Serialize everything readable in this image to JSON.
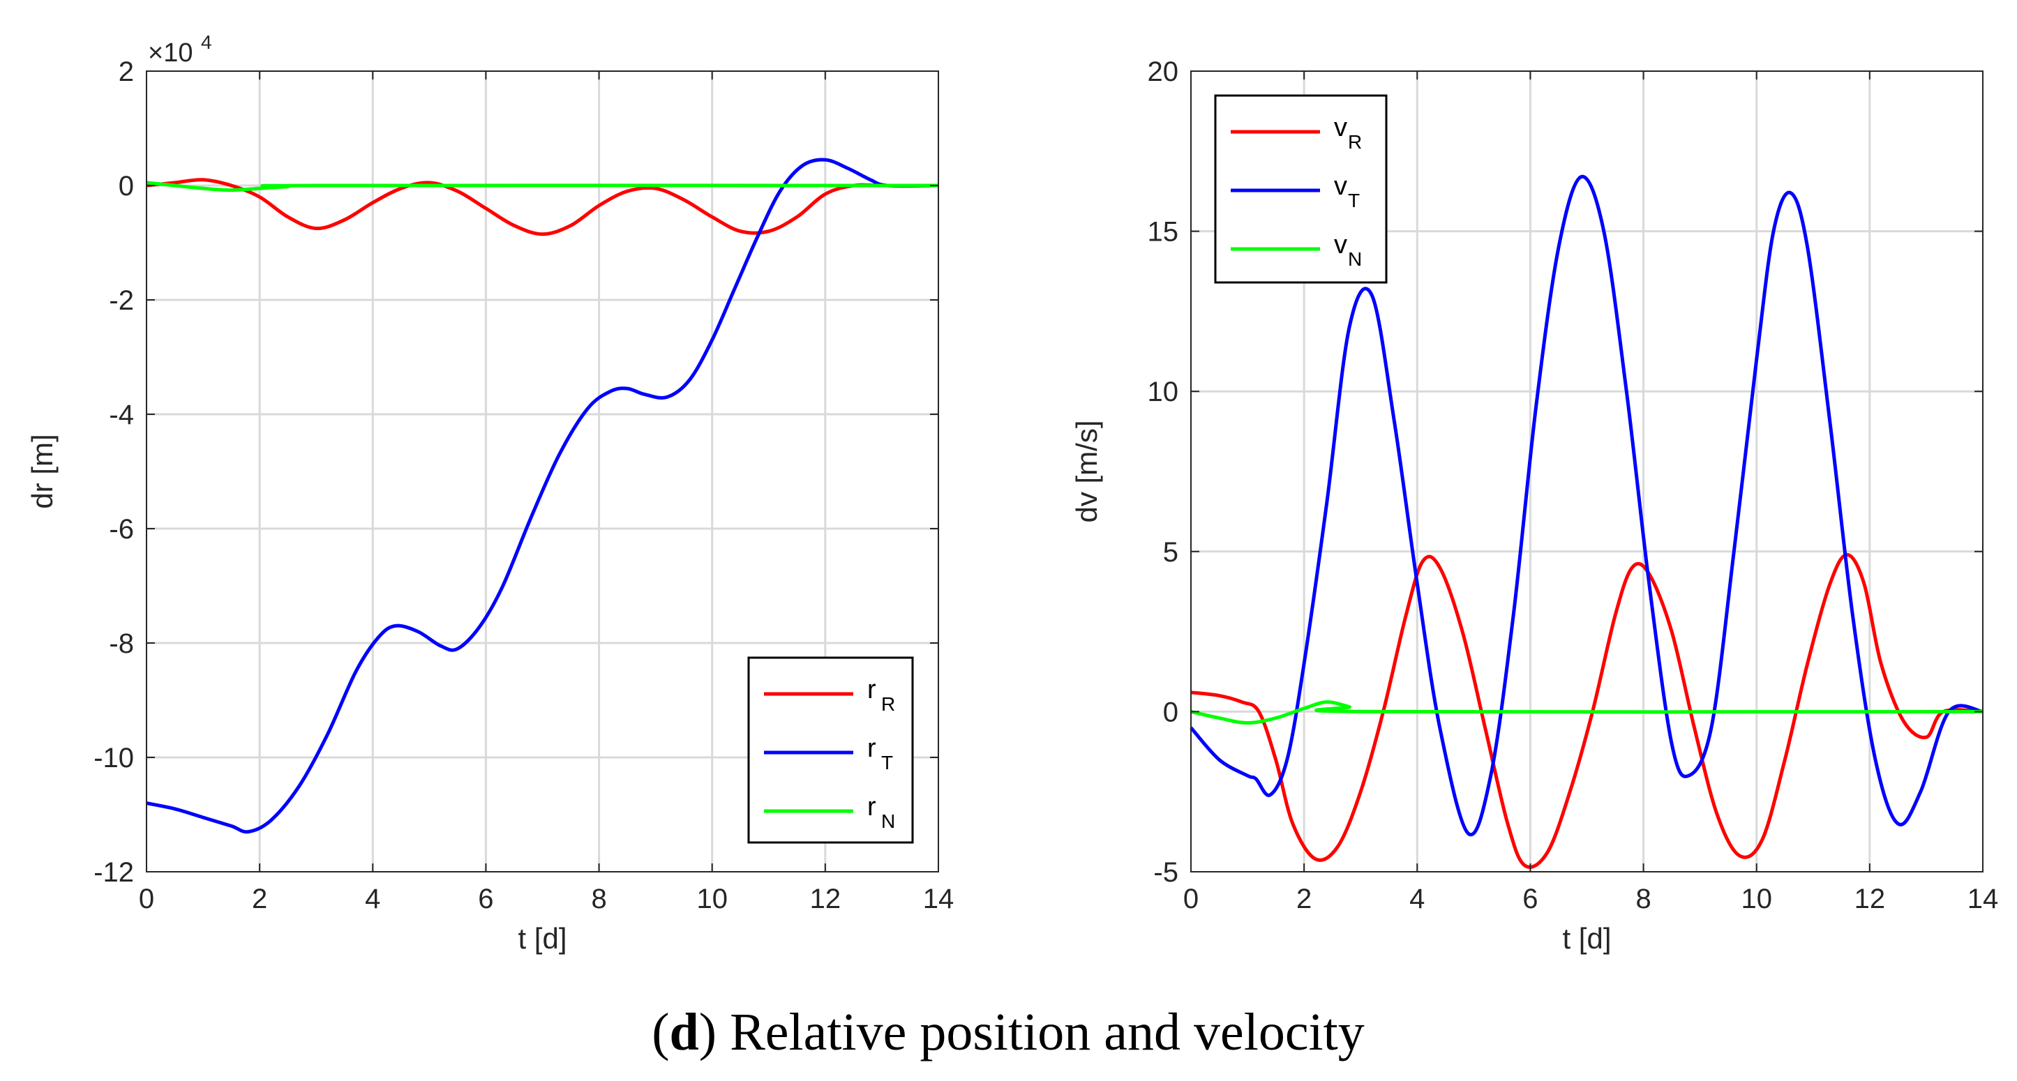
{
  "caption": {
    "open": "(",
    "bold": "d",
    "rest": ") Relative position and velocity"
  },
  "colors": {
    "red": "#ff0000",
    "blue": "#0000ff",
    "green": "#00ff00",
    "grid": "#d9d9d9",
    "axis": "#262626"
  },
  "chart_data": [
    {
      "type": "line",
      "id": "left",
      "xlabel": "t [d]",
      "ylabel": "dr [m]",
      "exponent_base": "×10",
      "exponent_power": "4",
      "xlim": [
        0,
        14
      ],
      "ylim": [
        -12,
        2
      ],
      "xticks": [
        0,
        2,
        4,
        6,
        8,
        10,
        12,
        14
      ],
      "yticks": [
        -12,
        -10,
        -8,
        -6,
        -4,
        -2,
        0,
        2
      ],
      "legend_position": "bottom-right",
      "series": [
        {
          "name": "r",
          "sub": "R",
          "color": "#ff0000",
          "x": [
            0,
            0.5,
            1,
            1.5,
            2,
            2.5,
            3,
            3.5,
            4,
            4.5,
            5,
            5.5,
            6,
            6.5,
            7,
            7.5,
            8,
            8.5,
            9,
            9.5,
            10,
            10.5,
            11,
            11.5,
            12,
            12.5,
            13,
            14
          ],
          "y": [
            0,
            0.05,
            0.1,
            0,
            -0.2,
            -0.55,
            -0.75,
            -0.6,
            -0.3,
            -0.05,
            0.05,
            -0.1,
            -0.4,
            -0.7,
            -0.85,
            -0.7,
            -0.35,
            -0.1,
            -0.05,
            -0.25,
            -0.55,
            -0.8,
            -0.8,
            -0.55,
            -0.15,
            0,
            0,
            0
          ]
        },
        {
          "name": "r",
          "sub": "T",
          "color": "#0000ff",
          "x": [
            0,
            0.5,
            1,
            1.5,
            1.8,
            2.2,
            2.7,
            3.2,
            3.7,
            4.1,
            4.4,
            4.8,
            5.2,
            5.5,
            5.9,
            6.3,
            6.8,
            7.3,
            7.8,
            8.2,
            8.5,
            8.8,
            9.2,
            9.6,
            10,
            10.4,
            10.8,
            11.2,
            11.6,
            12,
            12.4,
            12.8,
            13.1,
            14
          ],
          "y": [
            -10.8,
            -10.9,
            -11.05,
            -11.2,
            -11.3,
            -11.1,
            -10.5,
            -9.6,
            -8.5,
            -7.9,
            -7.7,
            -7.8,
            -8.05,
            -8.1,
            -7.7,
            -7.0,
            -5.8,
            -4.7,
            -3.9,
            -3.6,
            -3.55,
            -3.65,
            -3.7,
            -3.4,
            -2.7,
            -1.8,
            -0.9,
            -0.1,
            0.35,
            0.45,
            0.3,
            0.1,
            0,
            0
          ]
        },
        {
          "name": "r",
          "sub": "N",
          "color": "#00ff00",
          "x": [
            0,
            0.5,
            1,
            1.5,
            2,
            2.5,
            3,
            14
          ],
          "y": [
            0.05,
            0,
            -0.05,
            -0.08,
            -0.05,
            -0.02,
            0,
            0
          ]
        }
      ]
    },
    {
      "type": "line",
      "id": "right",
      "xlabel": "t [d]",
      "ylabel": "dv [m/s]",
      "xlim": [
        0,
        14
      ],
      "ylim": [
        -5,
        20
      ],
      "xticks": [
        0,
        2,
        4,
        6,
        8,
        10,
        12,
        14
      ],
      "yticks": [
        -5,
        0,
        5,
        10,
        15,
        20
      ],
      "legend_position": "top-left",
      "series": [
        {
          "name": "v",
          "sub": "R",
          "color": "#ff0000",
          "x": [
            0,
            0.5,
            0.9,
            1.2,
            1.5,
            1.8,
            2.2,
            2.6,
            3.0,
            3.4,
            3.8,
            4.1,
            4.4,
            4.8,
            5.2,
            5.6,
            5.9,
            6.3,
            6.7,
            7.1,
            7.5,
            7.8,
            8.1,
            8.5,
            8.9,
            9.3,
            9.7,
            10.1,
            10.5,
            10.9,
            11.3,
            11.6,
            11.9,
            12.2,
            12.6,
            13.0,
            13.3,
            14
          ],
          "y": [
            0.6,
            0.5,
            0.3,
            0,
            -1.5,
            -3.5,
            -4.6,
            -4.2,
            -2.5,
            0,
            3.0,
            4.7,
            4.5,
            2.5,
            -0.5,
            -3.5,
            -4.8,
            -4.4,
            -2.5,
            0,
            3.0,
            4.5,
            4.3,
            2.5,
            -0.5,
            -3.2,
            -4.5,
            -4.0,
            -1.5,
            1.5,
            4.0,
            4.9,
            4.0,
            1.5,
            -0.3,
            -0.8,
            0,
            0
          ]
        },
        {
          "name": "v",
          "sub": "T",
          "color": "#0000ff",
          "x": [
            0,
            0.5,
            1,
            1.15,
            1.4,
            1.7,
            2.0,
            2.4,
            2.8,
            3.2,
            3.6,
            4.0,
            4.4,
            4.9,
            5.3,
            5.7,
            6.1,
            6.5,
            6.9,
            7.3,
            7.7,
            8.1,
            8.5,
            8.8,
            9.2,
            9.6,
            10.0,
            10.3,
            10.6,
            10.9,
            11.3,
            11.7,
            12.1,
            12.5,
            12.9,
            13.4,
            14
          ],
          "y": [
            -0.5,
            -1.5,
            -2.0,
            -2.1,
            -2.6,
            -1.5,
            1.5,
            6.5,
            12.0,
            13.0,
            9.0,
            4.0,
            -0.5,
            -3.8,
            -2.0,
            3.0,
            9.5,
            14.5,
            16.7,
            15.0,
            10.0,
            4.0,
            -1.0,
            -2.0,
            -0.5,
            5.0,
            11.0,
            15.0,
            16.2,
            14.5,
            9.0,
            3.0,
            -1.5,
            -3.5,
            -2.5,
            0,
            0
          ]
        },
        {
          "name": "v",
          "sub": "N",
          "color": "#00ff00",
          "x": [
            0,
            0.5,
            1,
            1.5,
            2,
            2.4,
            2.8,
            3.1,
            14
          ],
          "y": [
            0,
            -0.2,
            -0.35,
            -0.2,
            0.1,
            0.3,
            0.15,
            0,
            0
          ]
        }
      ]
    }
  ]
}
